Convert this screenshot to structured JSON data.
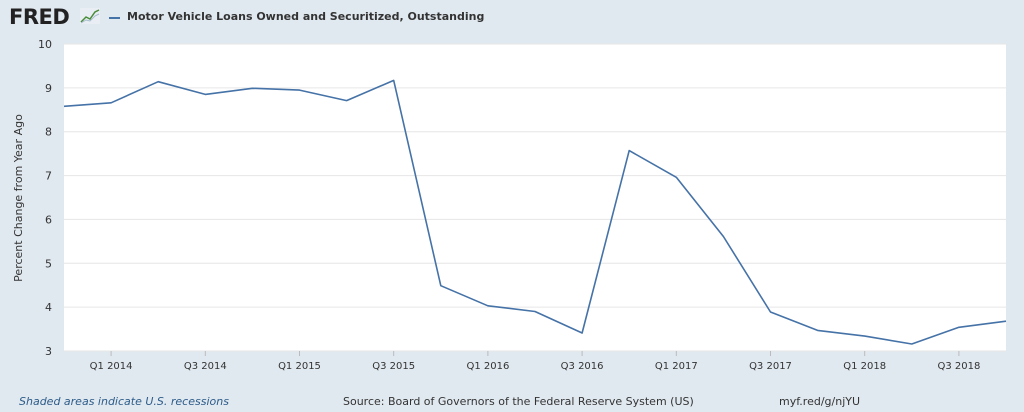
{
  "header": {
    "logo_text": "FRED",
    "legend_label": "Motor Vehicle Loans Owned and Securitized, Outstanding"
  },
  "footer": {
    "recession_note": "Shaded areas indicate U.S. recessions",
    "source": "Source: Board of Governors of the Federal Reserve System (US)",
    "short_url": "myf.red/g/njYU"
  },
  "colors": {
    "series": "#4572a7",
    "plot_background": "#ffffff",
    "page_background": "#e1e9f0"
  },
  "chart_data": {
    "type": "line",
    "ylabel": "Percent Change from Year Ago",
    "ylim": [
      3,
      10
    ],
    "yticks": [
      3,
      4,
      5,
      6,
      7,
      8,
      9,
      10
    ],
    "grid": true,
    "x": [
      "Q4 2013",
      "Q1 2014",
      "Q2 2014",
      "Q3 2014",
      "Q4 2014",
      "Q1 2015",
      "Q2 2015",
      "Q3 2015",
      "Q4 2015",
      "Q1 2016",
      "Q2 2016",
      "Q3 2016",
      "Q4 2016",
      "Q1 2017",
      "Q2 2017",
      "Q3 2017",
      "Q4 2017",
      "Q1 2018",
      "Q2 2018",
      "Q3 2018",
      "Q4 2018"
    ],
    "xticks": [
      "Q1 2014",
      "Q3 2014",
      "Q1 2015",
      "Q3 2015",
      "Q1 2016",
      "Q3 2016",
      "Q1 2017",
      "Q3 2017",
      "Q1 2018",
      "Q3 2018"
    ],
    "series": [
      {
        "name": "Motor Vehicle Loans Owned and Securitized, Outstanding",
        "values": [
          8.58,
          8.66,
          9.14,
          8.85,
          8.99,
          8.95,
          8.71,
          9.17,
          4.49,
          4.03,
          3.9,
          3.41,
          7.57,
          6.96,
          5.61,
          3.89,
          3.47,
          3.34,
          3.16,
          3.54,
          3.68
        ]
      }
    ]
  }
}
